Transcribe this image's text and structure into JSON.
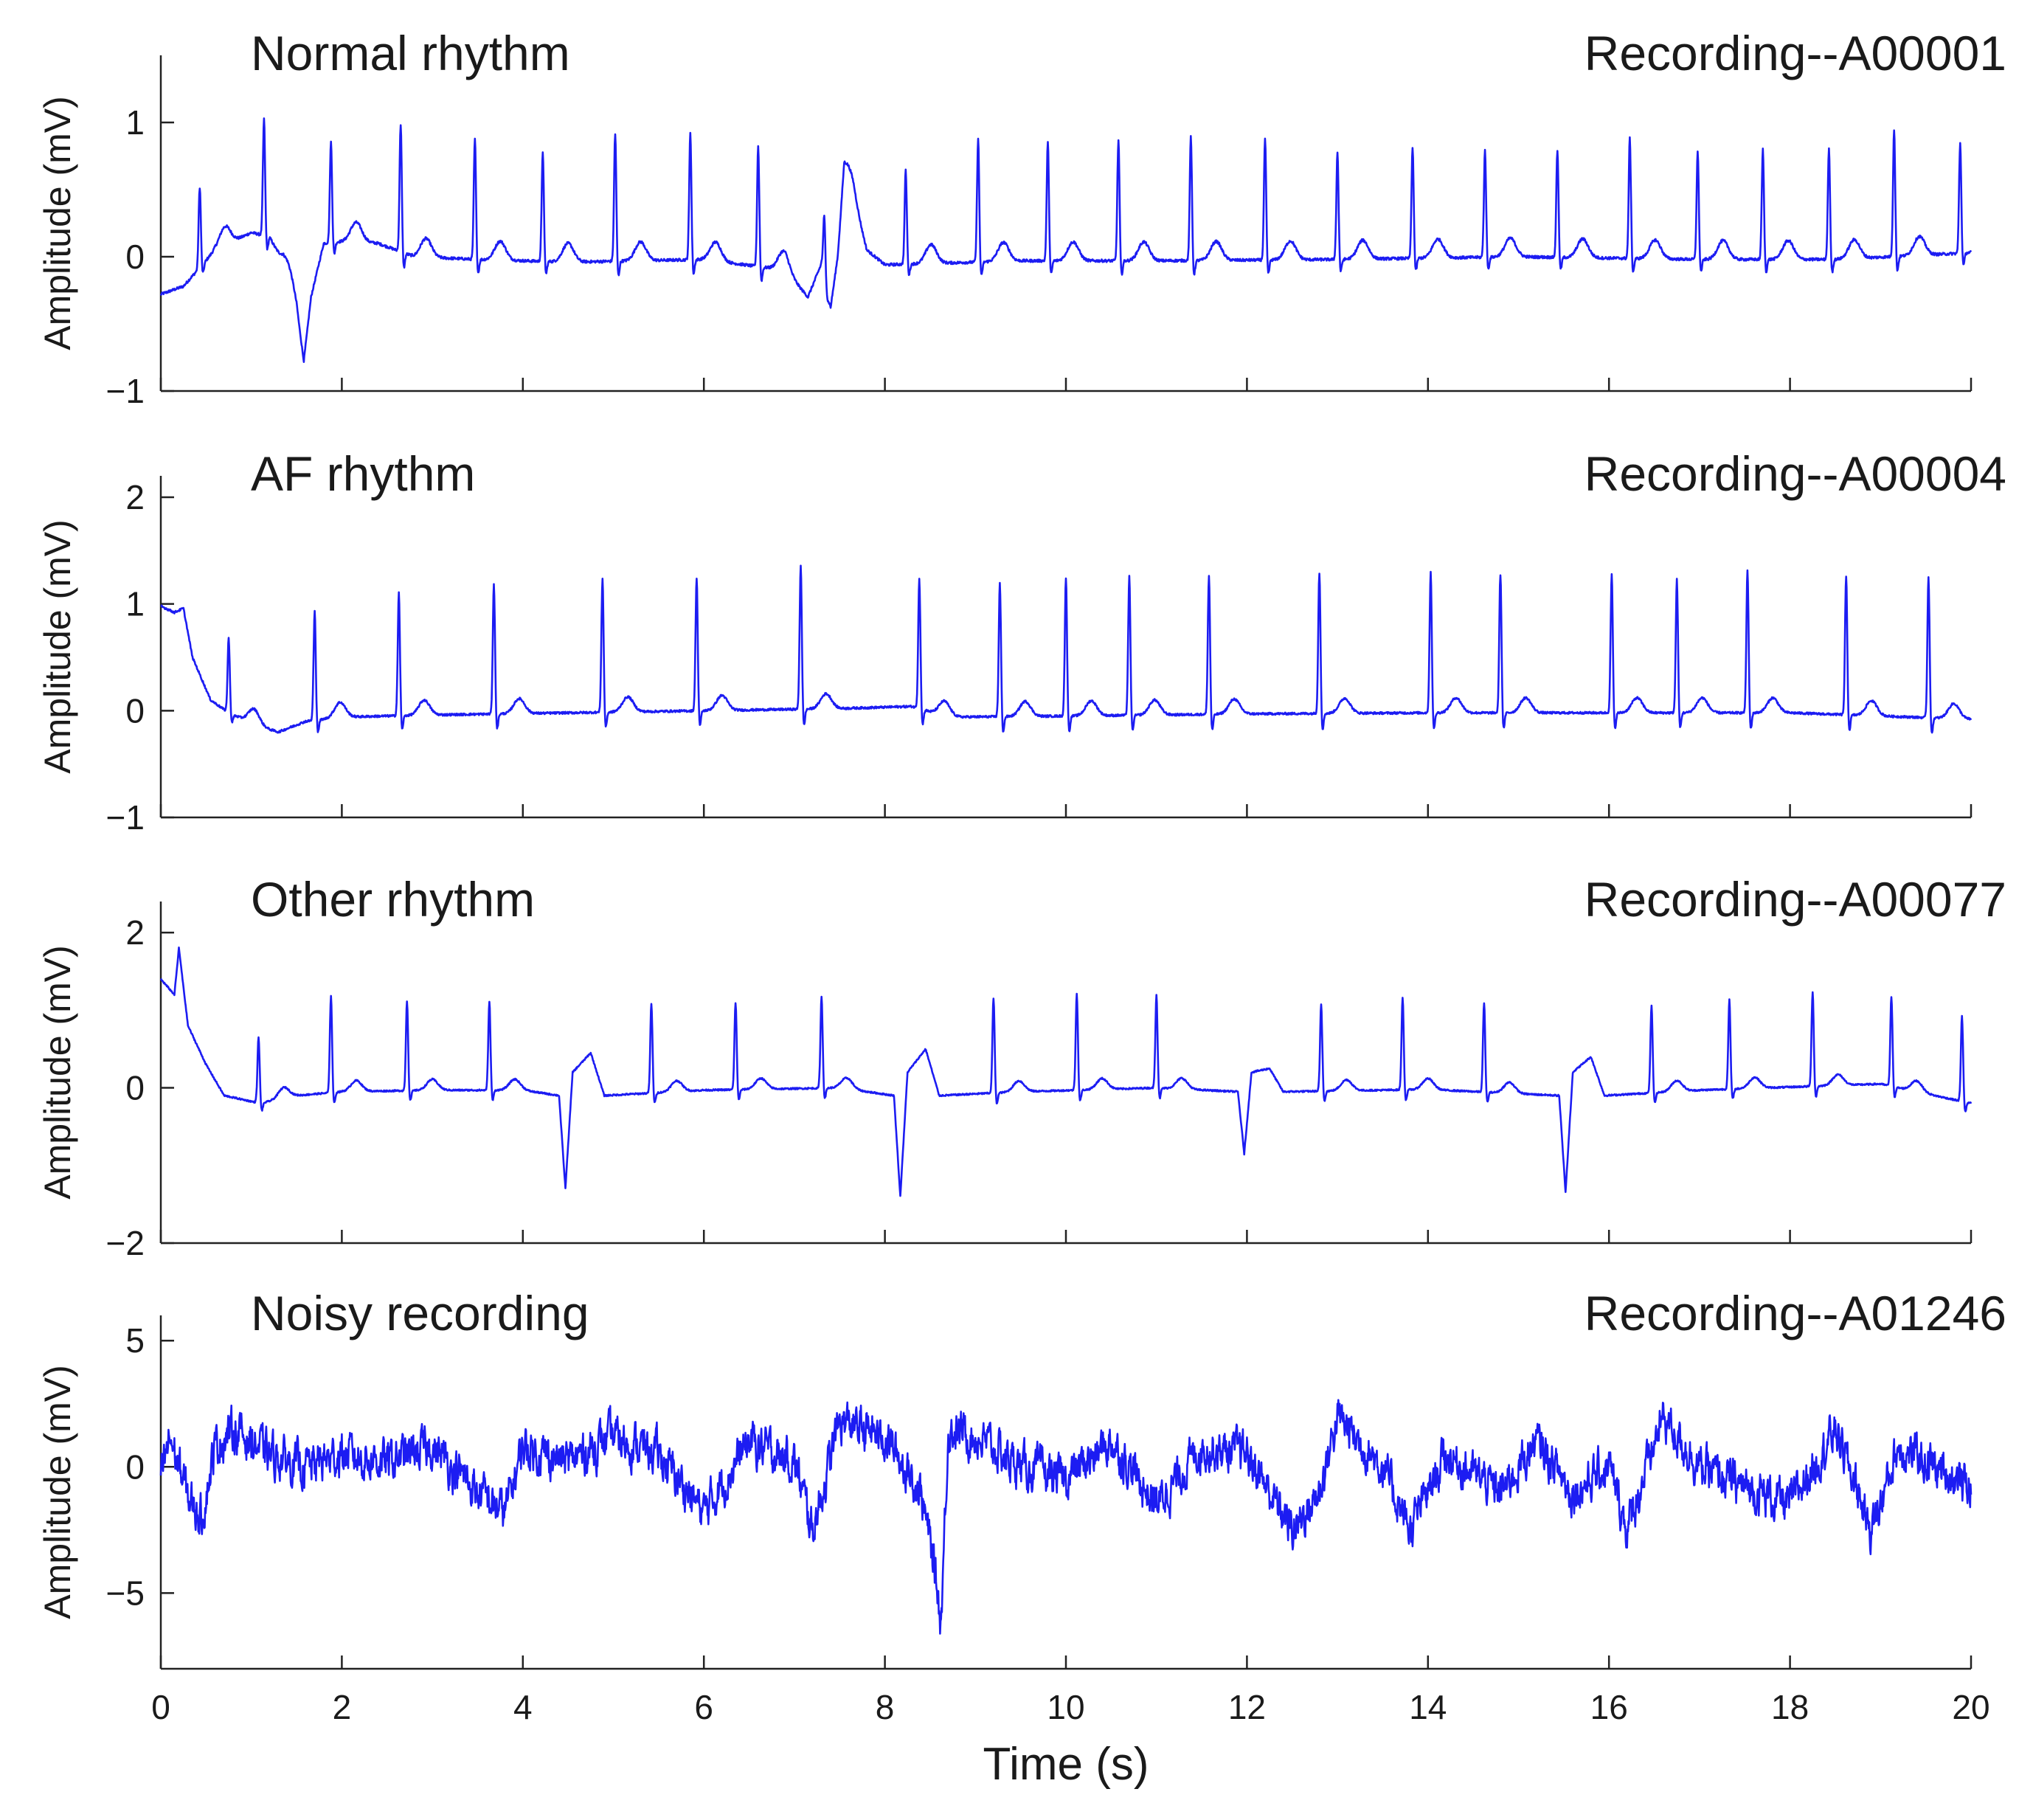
{
  "chart_data": [
    {
      "type": "line",
      "title": "Normal rhythm",
      "recording": "Recording--A00001",
      "ylabel": "Amplitude (mV)",
      "xlim": [
        0,
        20
      ],
      "ylim": [
        -1,
        1.5
      ],
      "yticks": [
        -1,
        0,
        1
      ],
      "ytick_labels": [
        "−1",
        "0",
        "1"
      ],
      "grid": false,
      "color": "#1c1cf2",
      "baseline": [
        [
          0,
          -0.28
        ],
        [
          0.25,
          -0.22
        ],
        [
          0.6,
          0.05
        ],
        [
          1.0,
          0.18
        ],
        [
          1.2,
          0.15
        ],
        [
          1.35,
          -0.05
        ],
        [
          1.5,
          -0.4
        ],
        [
          1.58,
          -0.78
        ],
        [
          1.66,
          -0.3
        ],
        [
          1.8,
          0.1
        ],
        [
          2.1,
          0.12
        ],
        [
          2.4,
          0.1
        ],
        [
          2.8,
          0.0
        ],
        [
          3.5,
          -0.02
        ],
        [
          4.5,
          -0.04
        ],
        [
          6.0,
          -0.02
        ],
        [
          6.9,
          -0.1
        ],
        [
          7.15,
          -0.3
        ],
        [
          7.3,
          -0.05
        ],
        [
          7.4,
          -0.38
        ],
        [
          7.48,
          0.0
        ],
        [
          7.55,
          0.62
        ],
        [
          7.65,
          0.45
        ],
        [
          7.8,
          0.05
        ],
        [
          8.0,
          -0.06
        ],
        [
          8.5,
          -0.05
        ],
        [
          9.5,
          -0.03
        ],
        [
          11.0,
          -0.03
        ],
        [
          13.0,
          -0.02
        ],
        [
          15.0,
          0.0
        ],
        [
          17.0,
          -0.02
        ],
        [
          18.5,
          -0.02
        ],
        [
          20.0,
          0.03
        ]
      ],
      "peaks": [
        0.43,
        1.14,
        1.88,
        2.65,
        3.47,
        4.22,
        5.02,
        5.85,
        6.6,
        7.33,
        8.23,
        9.03,
        9.8,
        10.58,
        11.38,
        12.2,
        13.0,
        13.83,
        14.63,
        15.43,
        16.23,
        16.98,
        17.7,
        18.43,
        19.15,
        19.88
      ],
      "peak_heights": [
        0.6,
        0.87,
        0.75,
        0.95,
        0.9,
        0.82,
        0.95,
        0.95,
        0.9,
        0.45,
        0.7,
        0.92,
        0.88,
        0.9,
        0.92,
        0.9,
        0.8,
        0.82,
        0.8,
        0.8,
        0.9,
        0.8,
        0.82,
        0.82,
        0.95,
        0.82
      ]
    },
    {
      "type": "line",
      "title": "AF rhythm",
      "recording": "Recording--A00004",
      "ylabel": "Amplitude (mV)",
      "xlim": [
        0,
        20
      ],
      "ylim": [
        -1,
        2.2
      ],
      "yticks": [
        -1,
        0,
        1,
        2
      ],
      "ytick_labels": [
        "−1",
        "0",
        "1",
        "2"
      ],
      "grid": false,
      "color": "#1c1cf2",
      "baseline": [
        [
          0,
          0.98
        ],
        [
          0.15,
          0.92
        ],
        [
          0.25,
          0.96
        ],
        [
          0.35,
          0.5
        ],
        [
          0.55,
          0.1
        ],
        [
          0.75,
          -0.02
        ],
        [
          1.1,
          -0.15
        ],
        [
          1.3,
          -0.2
        ],
        [
          1.6,
          -0.1
        ],
        [
          2.0,
          -0.06
        ],
        [
          3.0,
          -0.04
        ],
        [
          4.5,
          -0.02
        ],
        [
          6.0,
          0.0
        ],
        [
          7.5,
          0.02
        ],
        [
          8.3,
          0.04
        ],
        [
          8.7,
          -0.06
        ],
        [
          10.0,
          -0.05
        ],
        [
          12.0,
          -0.03
        ],
        [
          14.0,
          -0.02
        ],
        [
          16.0,
          -0.02
        ],
        [
          18.0,
          -0.02
        ],
        [
          20.0,
          -0.08
        ]
      ],
      "peaks": [
        0.75,
        1.7,
        2.63,
        3.68,
        4.88,
        5.92,
        7.07,
        8.38,
        9.27,
        10.0,
        10.7,
        11.58,
        12.8,
        14.03,
        14.8,
        16.03,
        16.75,
        17.53,
        18.62,
        19.53
      ],
      "peak_heights": [
        0.7,
        1.02,
        1.15,
        1.22,
        1.25,
        1.25,
        1.35,
        1.22,
        1.25,
        1.3,
        1.3,
        1.3,
        1.32,
        1.32,
        1.3,
        1.3,
        1.25,
        1.33,
        1.3,
        1.32
      ]
    },
    {
      "type": "line",
      "title": "Other rhythm",
      "recording": "Recording--A00077",
      "ylabel": "Amplitude (mV)",
      "xlim": [
        0,
        20
      ],
      "ylim": [
        -2,
        2.4
      ],
      "yticks": [
        -2,
        0,
        2
      ],
      "ytick_labels": [
        "−2",
        "0",
        "2"
      ],
      "grid": false,
      "color": "#1c1cf2",
      "baseline": [
        [
          0,
          1.4
        ],
        [
          0.15,
          1.2
        ],
        [
          0.2,
          1.8
        ],
        [
          0.3,
          0.8
        ],
        [
          0.5,
          0.3
        ],
        [
          0.7,
          -0.1
        ],
        [
          1.1,
          -0.2
        ],
        [
          1.5,
          -0.1
        ],
        [
          2.0,
          -0.05
        ],
        [
          3.0,
          -0.03
        ],
        [
          4.0,
          -0.03
        ],
        [
          4.4,
          -0.1
        ],
        [
          4.47,
          -1.3
        ],
        [
          4.55,
          0.2
        ],
        [
          4.75,
          0.45
        ],
        [
          4.9,
          -0.1
        ],
        [
          6.0,
          -0.03
        ],
        [
          7.5,
          0.0
        ],
        [
          8.1,
          -0.1
        ],
        [
          8.17,
          -1.4
        ],
        [
          8.25,
          0.2
        ],
        [
          8.45,
          0.5
        ],
        [
          8.6,
          -0.1
        ],
        [
          9.5,
          -0.05
        ],
        [
          11.0,
          0.0
        ],
        [
          11.9,
          -0.05
        ],
        [
          11.97,
          -0.85
        ],
        [
          12.05,
          0.2
        ],
        [
          12.25,
          0.25
        ],
        [
          12.4,
          -0.05
        ],
        [
          14.0,
          -0.02
        ],
        [
          15.45,
          -0.1
        ],
        [
          15.52,
          -1.35
        ],
        [
          15.6,
          0.2
        ],
        [
          15.8,
          0.4
        ],
        [
          15.95,
          -0.1
        ],
        [
          17.0,
          -0.03
        ],
        [
          19.0,
          0.05
        ],
        [
          20.0,
          -0.2
        ]
      ],
      "peaks": [
        1.08,
        1.88,
        2.72,
        3.63,
        5.42,
        6.35,
        7.3,
        9.2,
        10.12,
        11.0,
        12.82,
        13.72,
        14.62,
        16.47,
        17.33,
        18.25,
        19.12,
        19.9
      ],
      "peak_heights": [
        0.85,
        1.25,
        1.15,
        1.15,
        1.15,
        1.12,
        1.18,
        1.22,
        1.25,
        1.2,
        1.12,
        1.18,
        1.15,
        1.12,
        1.15,
        1.22,
        1.15,
        1.1
      ]
    },
    {
      "type": "line",
      "title": "Noisy recording",
      "recording": "Recording--A01246",
      "ylabel": "Amplitude (mV)",
      "xlabel": "Time (s)",
      "xlim": [
        0,
        20
      ],
      "ylim": [
        -8,
        6
      ],
      "yticks": [
        -5,
        0,
        5
      ],
      "ytick_labels": [
        "−5",
        "0",
        "5"
      ],
      "xticks": [
        0,
        2,
        4,
        6,
        8,
        10,
        12,
        14,
        16,
        18,
        20
      ],
      "xtick_labels": [
        "0",
        "2",
        "4",
        "6",
        "8",
        "10",
        "12",
        "14",
        "16",
        "18",
        "20"
      ],
      "grid": false,
      "color": "#1c1cf2",
      "baseline": [
        [
          0,
          -0.5
        ],
        [
          0.1,
          1.2
        ],
        [
          0.3,
          -1.2
        ],
        [
          0.45,
          -2.0
        ],
        [
          0.6,
          0.8
        ],
        [
          0.8,
          1.5
        ],
        [
          1.2,
          0.5
        ],
        [
          1.6,
          0.0
        ],
        [
          2.0,
          0.5
        ],
        [
          2.5,
          0.2
        ],
        [
          3.0,
          0.8
        ],
        [
          3.5,
          -1.0
        ],
        [
          3.8,
          -1.8
        ],
        [
          4.0,
          0.8
        ],
        [
          4.5,
          0.2
        ],
        [
          5.0,
          1.2
        ],
        [
          5.5,
          0.5
        ],
        [
          6.0,
          -1.8
        ],
        [
          6.5,
          1.0
        ],
        [
          7.0,
          0.2
        ],
        [
          7.2,
          -2.5
        ],
        [
          7.5,
          1.8
        ],
        [
          8.0,
          1.2
        ],
        [
          8.4,
          -1.0
        ],
        [
          8.55,
          -4.0
        ],
        [
          8.62,
          -6.2
        ],
        [
          8.7,
          1.5
        ],
        [
          9.0,
          1.2
        ],
        [
          9.5,
          0.0
        ],
        [
          10.0,
          -0.5
        ],
        [
          10.5,
          1.0
        ],
        [
          11.0,
          -1.5
        ],
        [
          11.5,
          0.8
        ],
        [
          12.0,
          0.5
        ],
        [
          12.5,
          -2.5
        ],
        [
          12.8,
          -1.0
        ],
        [
          13.0,
          2.0
        ],
        [
          13.5,
          0.0
        ],
        [
          13.8,
          -2.5
        ],
        [
          14.2,
          0.5
        ],
        [
          14.8,
          -1.0
        ],
        [
          15.2,
          1.0
        ],
        [
          15.6,
          -1.0
        ],
        [
          16.0,
          0.0
        ],
        [
          16.2,
          -2.5
        ],
        [
          16.6,
          2.0
        ],
        [
          17.0,
          0.0
        ],
        [
          17.5,
          -0.8
        ],
        [
          18.0,
          -1.5
        ],
        [
          18.5,
          1.5
        ],
        [
          18.9,
          -2.5
        ],
        [
          19.2,
          0.8
        ],
        [
          20.0,
          -0.8
        ]
      ],
      "noise_amplitude": 0.9
    }
  ]
}
